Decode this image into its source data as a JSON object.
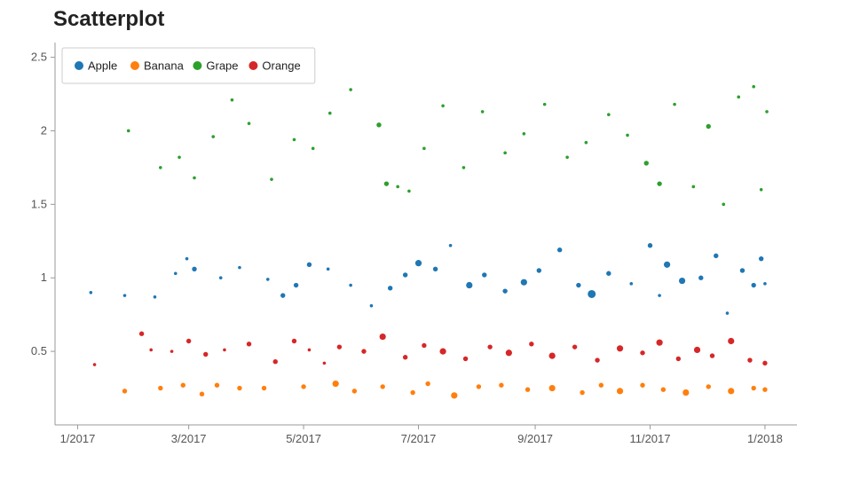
{
  "chart_data": {
    "type": "scatter",
    "title": "Scatterplot",
    "xlabel": "",
    "ylabel": "",
    "x_range": [
      "2016-12-20",
      "2018-01-18"
    ],
    "ylim": [
      0.0,
      2.6
    ],
    "x_ticks": [
      {
        "value": "2017-01-01",
        "label": "1/2017"
      },
      {
        "value": "2017-03-01",
        "label": "3/2017"
      },
      {
        "value": "2017-05-01",
        "label": "5/2017"
      },
      {
        "value": "2017-07-01",
        "label": "7/2017"
      },
      {
        "value": "2017-09-01",
        "label": "9/2017"
      },
      {
        "value": "2017-11-01",
        "label": "11/2017"
      },
      {
        "value": "2018-01-01",
        "label": "1/2018"
      }
    ],
    "y_ticks": [
      {
        "value": 0.5,
        "label": "0.5"
      },
      {
        "value": 1,
        "label": "1"
      },
      {
        "value": 1.5,
        "label": "1.5"
      },
      {
        "value": 2,
        "label": "2"
      },
      {
        "value": 2.5,
        "label": "2.5"
      }
    ],
    "grid": false,
    "legend_position": "top-left",
    "series": [
      {
        "name": "Apple",
        "color": "#1f77b4",
        "points": [
          {
            "x": "2017-01-08",
            "y": 0.9,
            "s": 2
          },
          {
            "x": "2017-01-26",
            "y": 0.88,
            "s": 2
          },
          {
            "x": "2017-02-11",
            "y": 0.87,
            "s": 2
          },
          {
            "x": "2017-02-22",
            "y": 1.03,
            "s": 2
          },
          {
            "x": "2017-02-28",
            "y": 1.13,
            "s": 2
          },
          {
            "x": "2017-03-04",
            "y": 1.06,
            "s": 3
          },
          {
            "x": "2017-03-18",
            "y": 1.0,
            "s": 2
          },
          {
            "x": "2017-03-28",
            "y": 1.07,
            "s": 2
          },
          {
            "x": "2017-04-12",
            "y": 0.99,
            "s": 2
          },
          {
            "x": "2017-04-20",
            "y": 0.88,
            "s": 3
          },
          {
            "x": "2017-04-27",
            "y": 0.95,
            "s": 3
          },
          {
            "x": "2017-05-04",
            "y": 1.09,
            "s": 3
          },
          {
            "x": "2017-05-14",
            "y": 1.06,
            "s": 2
          },
          {
            "x": "2017-05-26",
            "y": 0.95,
            "s": 2
          },
          {
            "x": "2017-06-06",
            "y": 0.81,
            "s": 2
          },
          {
            "x": "2017-06-16",
            "y": 0.93,
            "s": 3
          },
          {
            "x": "2017-06-24",
            "y": 1.02,
            "s": 3
          },
          {
            "x": "2017-07-01",
            "y": 1.1,
            "s": 4
          },
          {
            "x": "2017-07-10",
            "y": 1.06,
            "s": 3
          },
          {
            "x": "2017-07-18",
            "y": 1.22,
            "s": 2
          },
          {
            "x": "2017-07-28",
            "y": 0.95,
            "s": 4
          },
          {
            "x": "2017-08-05",
            "y": 1.02,
            "s": 3
          },
          {
            "x": "2017-08-16",
            "y": 0.91,
            "s": 3
          },
          {
            "x": "2017-08-26",
            "y": 0.97,
            "s": 4
          },
          {
            "x": "2017-09-03",
            "y": 1.05,
            "s": 3
          },
          {
            "x": "2017-09-14",
            "y": 1.19,
            "s": 3
          },
          {
            "x": "2017-09-24",
            "y": 0.95,
            "s": 3
          },
          {
            "x": "2017-10-01",
            "y": 0.89,
            "s": 5
          },
          {
            "x": "2017-10-10",
            "y": 1.03,
            "s": 3
          },
          {
            "x": "2017-10-22",
            "y": 0.96,
            "s": 2
          },
          {
            "x": "2017-11-01",
            "y": 1.22,
            "s": 3
          },
          {
            "x": "2017-11-06",
            "y": 0.88,
            "s": 2
          },
          {
            "x": "2017-11-10",
            "y": 1.09,
            "s": 4
          },
          {
            "x": "2017-11-18",
            "y": 0.98,
            "s": 4
          },
          {
            "x": "2017-11-28",
            "y": 1.0,
            "s": 3
          },
          {
            "x": "2017-12-06",
            "y": 1.15,
            "s": 3
          },
          {
            "x": "2017-12-12",
            "y": 0.76,
            "s": 2
          },
          {
            "x": "2017-12-20",
            "y": 1.05,
            "s": 3
          },
          {
            "x": "2017-12-26",
            "y": 0.95,
            "s": 3
          },
          {
            "x": "2017-12-30",
            "y": 1.13,
            "s": 3
          },
          {
            "x": "2018-01-01",
            "y": 0.96,
            "s": 2
          }
        ]
      },
      {
        "name": "Banana",
        "color": "#ff7f0e",
        "points": [
          {
            "x": "2017-01-26",
            "y": 0.23,
            "s": 3
          },
          {
            "x": "2017-02-14",
            "y": 0.25,
            "s": 3
          },
          {
            "x": "2017-02-26",
            "y": 0.27,
            "s": 3
          },
          {
            "x": "2017-03-08",
            "y": 0.21,
            "s": 3
          },
          {
            "x": "2017-03-16",
            "y": 0.27,
            "s": 3
          },
          {
            "x": "2017-03-28",
            "y": 0.25,
            "s": 3
          },
          {
            "x": "2017-04-10",
            "y": 0.25,
            "s": 3
          },
          {
            "x": "2017-05-01",
            "y": 0.26,
            "s": 3
          },
          {
            "x": "2017-05-18",
            "y": 0.28,
            "s": 4
          },
          {
            "x": "2017-05-28",
            "y": 0.23,
            "s": 3
          },
          {
            "x": "2017-06-12",
            "y": 0.26,
            "s": 3
          },
          {
            "x": "2017-06-28",
            "y": 0.22,
            "s": 3
          },
          {
            "x": "2017-07-06",
            "y": 0.28,
            "s": 3
          },
          {
            "x": "2017-07-20",
            "y": 0.2,
            "s": 4
          },
          {
            "x": "2017-08-02",
            "y": 0.26,
            "s": 3
          },
          {
            "x": "2017-08-14",
            "y": 0.27,
            "s": 3
          },
          {
            "x": "2017-08-28",
            "y": 0.24,
            "s": 3
          },
          {
            "x": "2017-09-10",
            "y": 0.25,
            "s": 4
          },
          {
            "x": "2017-09-26",
            "y": 0.22,
            "s": 3
          },
          {
            "x": "2017-10-06",
            "y": 0.27,
            "s": 3
          },
          {
            "x": "2017-10-16",
            "y": 0.23,
            "s": 4
          },
          {
            "x": "2017-10-28",
            "y": 0.27,
            "s": 3
          },
          {
            "x": "2017-11-08",
            "y": 0.24,
            "s": 3
          },
          {
            "x": "2017-11-20",
            "y": 0.22,
            "s": 4
          },
          {
            "x": "2017-12-02",
            "y": 0.26,
            "s": 3
          },
          {
            "x": "2017-12-14",
            "y": 0.23,
            "s": 4
          },
          {
            "x": "2017-12-26",
            "y": 0.25,
            "s": 3
          },
          {
            "x": "2018-01-01",
            "y": 0.24,
            "s": 3
          }
        ]
      },
      {
        "name": "Grape",
        "color": "#2ca02c",
        "points": [
          {
            "x": "2017-01-28",
            "y": 2.0,
            "s": 2
          },
          {
            "x": "2017-02-14",
            "y": 1.75,
            "s": 2
          },
          {
            "x": "2017-02-24",
            "y": 1.82,
            "s": 2
          },
          {
            "x": "2017-03-04",
            "y": 1.68,
            "s": 2
          },
          {
            "x": "2017-03-14",
            "y": 1.96,
            "s": 2
          },
          {
            "x": "2017-03-24",
            "y": 2.21,
            "s": 2
          },
          {
            "x": "2017-04-02",
            "y": 2.05,
            "s": 2
          },
          {
            "x": "2017-04-14",
            "y": 1.67,
            "s": 2
          },
          {
            "x": "2017-04-26",
            "y": 1.94,
            "s": 2
          },
          {
            "x": "2017-05-06",
            "y": 1.88,
            "s": 2
          },
          {
            "x": "2017-05-15",
            "y": 2.12,
            "s": 2
          },
          {
            "x": "2017-05-26",
            "y": 2.28,
            "s": 2
          },
          {
            "x": "2017-06-10",
            "y": 2.04,
            "s": 3
          },
          {
            "x": "2017-06-14",
            "y": 1.64,
            "s": 3
          },
          {
            "x": "2017-06-20",
            "y": 1.62,
            "s": 2
          },
          {
            "x": "2017-06-26",
            "y": 1.59,
            "s": 2
          },
          {
            "x": "2017-07-04",
            "y": 1.88,
            "s": 2
          },
          {
            "x": "2017-07-14",
            "y": 2.17,
            "s": 2
          },
          {
            "x": "2017-07-25",
            "y": 1.75,
            "s": 2
          },
          {
            "x": "2017-08-04",
            "y": 2.13,
            "s": 2
          },
          {
            "x": "2017-08-16",
            "y": 1.85,
            "s": 2
          },
          {
            "x": "2017-08-26",
            "y": 1.98,
            "s": 2
          },
          {
            "x": "2017-09-06",
            "y": 2.18,
            "s": 2
          },
          {
            "x": "2017-09-18",
            "y": 1.82,
            "s": 2
          },
          {
            "x": "2017-09-28",
            "y": 1.92,
            "s": 2
          },
          {
            "x": "2017-10-10",
            "y": 2.11,
            "s": 2
          },
          {
            "x": "2017-10-20",
            "y": 1.97,
            "s": 2
          },
          {
            "x": "2017-10-30",
            "y": 1.78,
            "s": 3
          },
          {
            "x": "2017-11-06",
            "y": 1.64,
            "s": 3
          },
          {
            "x": "2017-11-14",
            "y": 2.18,
            "s": 2
          },
          {
            "x": "2017-11-24",
            "y": 1.62,
            "s": 2
          },
          {
            "x": "2017-12-02",
            "y": 2.03,
            "s": 3
          },
          {
            "x": "2017-12-10",
            "y": 1.5,
            "s": 2
          },
          {
            "x": "2017-12-18",
            "y": 2.23,
            "s": 2
          },
          {
            "x": "2017-12-26",
            "y": 2.3,
            "s": 2
          },
          {
            "x": "2017-12-30",
            "y": 1.6,
            "s": 2
          },
          {
            "x": "2018-01-02",
            "y": 2.13,
            "s": 2
          }
        ]
      },
      {
        "name": "Orange",
        "color": "#d62728",
        "points": [
          {
            "x": "2017-01-10",
            "y": 0.41,
            "s": 2
          },
          {
            "x": "2017-02-04",
            "y": 0.62,
            "s": 3
          },
          {
            "x": "2017-02-09",
            "y": 0.51,
            "s": 2
          },
          {
            "x": "2017-02-20",
            "y": 0.5,
            "s": 2
          },
          {
            "x": "2017-03-01",
            "y": 0.57,
            "s": 3
          },
          {
            "x": "2017-03-10",
            "y": 0.48,
            "s": 3
          },
          {
            "x": "2017-03-20",
            "y": 0.51,
            "s": 2
          },
          {
            "x": "2017-04-02",
            "y": 0.55,
            "s": 3
          },
          {
            "x": "2017-04-16",
            "y": 0.43,
            "s": 3
          },
          {
            "x": "2017-04-26",
            "y": 0.57,
            "s": 3
          },
          {
            "x": "2017-05-04",
            "y": 0.51,
            "s": 2
          },
          {
            "x": "2017-05-12",
            "y": 0.42,
            "s": 2
          },
          {
            "x": "2017-05-20",
            "y": 0.53,
            "s": 3
          },
          {
            "x": "2017-06-02",
            "y": 0.5,
            "s": 3
          },
          {
            "x": "2017-06-12",
            "y": 0.6,
            "s": 4
          },
          {
            "x": "2017-06-24",
            "y": 0.46,
            "s": 3
          },
          {
            "x": "2017-07-04",
            "y": 0.54,
            "s": 3
          },
          {
            "x": "2017-07-14",
            "y": 0.5,
            "s": 4
          },
          {
            "x": "2017-07-26",
            "y": 0.45,
            "s": 3
          },
          {
            "x": "2017-08-08",
            "y": 0.53,
            "s": 3
          },
          {
            "x": "2017-08-18",
            "y": 0.49,
            "s": 4
          },
          {
            "x": "2017-08-30",
            "y": 0.55,
            "s": 3
          },
          {
            "x": "2017-09-10",
            "y": 0.47,
            "s": 4
          },
          {
            "x": "2017-09-22",
            "y": 0.53,
            "s": 3
          },
          {
            "x": "2017-10-04",
            "y": 0.44,
            "s": 3
          },
          {
            "x": "2017-10-16",
            "y": 0.52,
            "s": 4
          },
          {
            "x": "2017-10-28",
            "y": 0.49,
            "s": 3
          },
          {
            "x": "2017-11-06",
            "y": 0.56,
            "s": 4
          },
          {
            "x": "2017-11-16",
            "y": 0.45,
            "s": 3
          },
          {
            "x": "2017-11-26",
            "y": 0.51,
            "s": 4
          },
          {
            "x": "2017-12-04",
            "y": 0.47,
            "s": 3
          },
          {
            "x": "2017-12-14",
            "y": 0.57,
            "s": 4
          },
          {
            "x": "2017-12-24",
            "y": 0.44,
            "s": 3
          },
          {
            "x": "2018-01-01",
            "y": 0.42,
            "s": 3
          }
        ]
      }
    ]
  }
}
